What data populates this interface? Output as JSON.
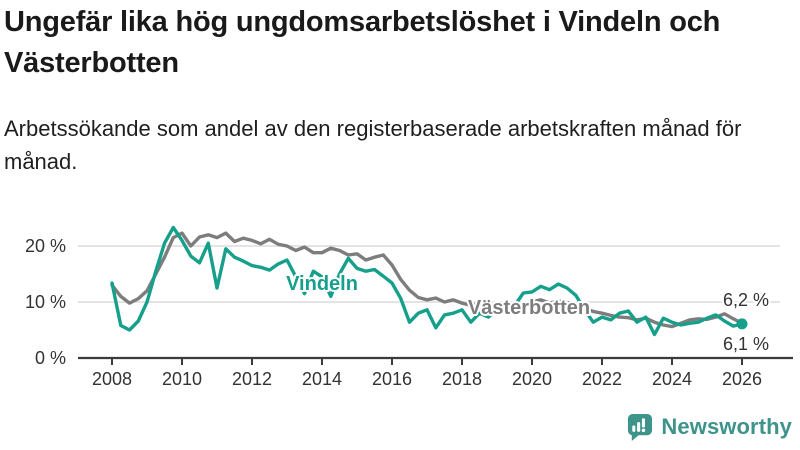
{
  "title": "Ungefär lika hög ungdomsarbetslöshet i Vindeln och Västerbotten",
  "subtitle": "Arbetssökande som andel av den registerbaserade arbetskraften månad för månad.",
  "chart_data": {
    "type": "line",
    "title": "Ungefär lika hög ungdomsarbetslöshet i Vindeln och Västerbotten",
    "subtitle": "Arbetssökande som andel av den registerbaserade arbetskraften månad för månad.",
    "unit": "%",
    "xlabel": "",
    "ylabel": "",
    "xlim": [
      2007.6,
      2026.5
    ],
    "ylim": [
      0,
      25
    ],
    "grid": "horizontal",
    "x_ticks": [
      2008,
      2010,
      2012,
      2014,
      2016,
      2018,
      2020,
      2022,
      2024,
      2026
    ],
    "y_ticks": [
      {
        "value": 0,
        "label": "0 %"
      },
      {
        "value": 10,
        "label": "10 %"
      },
      {
        "value": 20,
        "label": "20 %"
      }
    ],
    "x": [
      2008,
      2008.25,
      2008.5,
      2008.75,
      2009,
      2009.25,
      2009.5,
      2009.75,
      2010,
      2010.25,
      2010.5,
      2010.75,
      2011,
      2011.25,
      2011.5,
      2011.75,
      2012,
      2012.25,
      2012.5,
      2012.75,
      2013,
      2013.25,
      2013.5,
      2013.75,
      2014,
      2014.25,
      2014.5,
      2014.75,
      2015,
      2015.25,
      2015.5,
      2015.75,
      2016,
      2016.25,
      2016.5,
      2016.75,
      2017,
      2017.25,
      2017.5,
      2017.75,
      2018,
      2018.25,
      2018.5,
      2018.75,
      2019,
      2019.25,
      2019.5,
      2019.75,
      2020,
      2020.25,
      2020.5,
      2020.75,
      2021,
      2021.25,
      2021.5,
      2021.75,
      2022,
      2022.25,
      2022.5,
      2022.75,
      2023,
      2023.25,
      2023.5,
      2023.75,
      2024,
      2024.25,
      2024.5,
      2024.75,
      2025,
      2025.25,
      2025.5,
      2025.75,
      2026
    ],
    "series": [
      {
        "name": "Västerbotten",
        "color": "#7d7d7d",
        "end_label": "6,2 %",
        "endpoint_dot": false,
        "values": [
          13.0,
          11.0,
          9.8,
          10.6,
          12.0,
          15.0,
          18.0,
          21.5,
          22.3,
          20.0,
          21.6,
          22.0,
          21.5,
          22.3,
          20.8,
          21.4,
          21.0,
          20.4,
          21.2,
          20.3,
          20.0,
          19.2,
          19.8,
          18.8,
          18.8,
          19.6,
          19.2,
          18.4,
          18.6,
          17.5,
          18.0,
          18.4,
          16.6,
          14.0,
          12.1,
          10.8,
          10.4,
          10.7,
          10.0,
          10.4,
          9.8,
          9.4,
          9.8,
          9.3,
          9.1,
          9.5,
          9.1,
          9.6,
          10.0,
          10.4,
          9.8,
          10.2,
          9.9,
          9.6,
          8.9,
          8.3,
          8.0,
          7.6,
          7.3,
          7.2,
          6.8,
          7.1,
          6.4,
          5.9,
          5.6,
          6.2,
          6.8,
          7.0,
          6.9,
          7.3,
          7.9,
          7.0,
          6.2
        ]
      },
      {
        "name": "Vindeln",
        "color": "#16a08c",
        "end_label": "6,1 %",
        "endpoint_dot": true,
        "values": [
          13.4,
          5.8,
          5.0,
          6.6,
          10.0,
          15.5,
          20.5,
          23.3,
          21.0,
          18.2,
          17.0,
          20.5,
          12.5,
          19.5,
          18.0,
          17.3,
          16.5,
          16.2,
          15.7,
          16.8,
          17.5,
          14.5,
          11.5,
          15.5,
          14.5,
          11.0,
          15.0,
          17.8,
          16.0,
          15.5,
          15.8,
          14.6,
          13.4,
          10.6,
          6.4,
          8.0,
          8.6,
          5.4,
          7.7,
          8.0,
          8.6,
          6.4,
          8.0,
          7.3,
          8.6,
          8.2,
          9.3,
          11.6,
          11.8,
          12.8,
          12.2,
          13.2,
          12.5,
          11.2,
          8.6,
          6.4,
          7.3,
          6.8,
          8.0,
          8.4,
          6.4,
          7.3,
          4.2,
          7.1,
          6.4,
          5.9,
          6.2,
          6.4,
          7.1,
          7.7,
          6.6,
          5.7,
          6.1
        ]
      }
    ],
    "legend_position": "inline-labels"
  },
  "branding": {
    "name": "Newsworthy",
    "color": "#3e948b"
  }
}
